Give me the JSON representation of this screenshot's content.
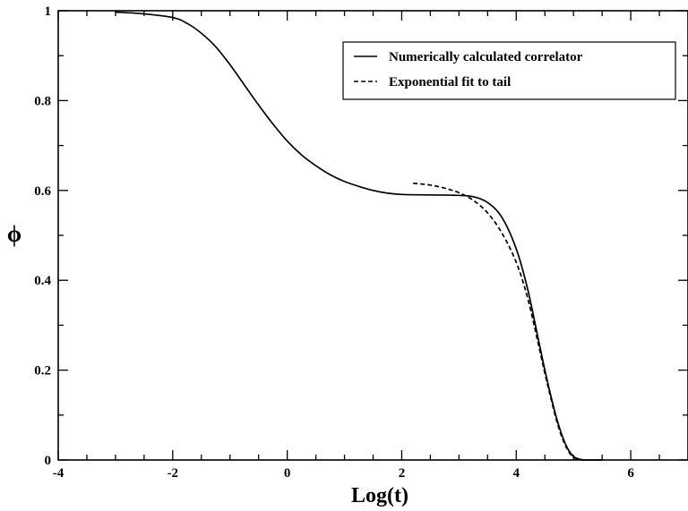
{
  "chart_data": {
    "type": "line",
    "xlabel": "Log(t)",
    "ylabel": "ϕ",
    "xlim": [
      -4,
      7
    ],
    "ylim": [
      0,
      1
    ],
    "x_ticks": [
      -4,
      -2,
      0,
      2,
      4,
      6
    ],
    "y_ticks": [
      0,
      0.2,
      0.4,
      0.6,
      0.8,
      1
    ],
    "x_tick_labels": [
      "-4",
      "-2",
      "0",
      "2",
      "4",
      "6"
    ],
    "y_tick_labels": [
      "0",
      "0.2",
      "0.4",
      "0.6",
      "0.8",
      "1"
    ],
    "grid": false,
    "legend_position": "top-right",
    "series": [
      {
        "name": "Numerically calculated correlator",
        "style": "solid",
        "color": "#000000",
        "points": [
          [
            -3.0,
            0.997
          ],
          [
            -2.5,
            0.993
          ],
          [
            -2.0,
            0.985
          ],
          [
            -1.75,
            0.972
          ],
          [
            -1.5,
            0.95
          ],
          [
            -1.25,
            0.92
          ],
          [
            -1.0,
            0.88
          ],
          [
            -0.75,
            0.835
          ],
          [
            -0.5,
            0.79
          ],
          [
            -0.25,
            0.748
          ],
          [
            0.0,
            0.71
          ],
          [
            0.25,
            0.679
          ],
          [
            0.5,
            0.655
          ],
          [
            0.75,
            0.635
          ],
          [
            1.0,
            0.62
          ],
          [
            1.25,
            0.609
          ],
          [
            1.5,
            0.6
          ],
          [
            1.75,
            0.594
          ],
          [
            2.0,
            0.591
          ],
          [
            2.5,
            0.59
          ],
          [
            3.0,
            0.589
          ],
          [
            3.25,
            0.586
          ],
          [
            3.5,
            0.573
          ],
          [
            3.75,
            0.54
          ],
          [
            4.0,
            0.47
          ],
          [
            4.2,
            0.38
          ],
          [
            4.4,
            0.26
          ],
          [
            4.5,
            0.2
          ],
          [
            4.6,
            0.145
          ],
          [
            4.7,
            0.095
          ],
          [
            4.8,
            0.055
          ],
          [
            4.9,
            0.025
          ],
          [
            5.0,
            0.008
          ],
          [
            5.1,
            0.002
          ],
          [
            5.2,
            0.0
          ],
          [
            5.5,
            0.0
          ]
        ]
      },
      {
        "name": "Exponential fit to tail",
        "style": "dashed",
        "color": "#000000",
        "points": [
          [
            2.2,
            0.616
          ],
          [
            2.5,
            0.612
          ],
          [
            2.75,
            0.605
          ],
          [
            3.0,
            0.595
          ],
          [
            3.25,
            0.578
          ],
          [
            3.5,
            0.55
          ],
          [
            3.75,
            0.505
          ],
          [
            4.0,
            0.44
          ],
          [
            4.2,
            0.36
          ],
          [
            4.4,
            0.25
          ],
          [
            4.5,
            0.193
          ],
          [
            4.6,
            0.14
          ],
          [
            4.7,
            0.09
          ],
          [
            4.8,
            0.05
          ],
          [
            4.9,
            0.022
          ],
          [
            5.0,
            0.006
          ],
          [
            5.1,
            0.001
          ],
          [
            5.2,
            0.0
          ]
        ]
      }
    ]
  }
}
